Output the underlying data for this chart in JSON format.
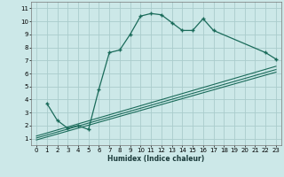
{
  "title": "",
  "xlabel": "Humidex (Indice chaleur)",
  "bg_color": "#cce8e8",
  "grid_color": "#aacccc",
  "line_color": "#1a6b5a",
  "xlim": [
    -0.5,
    23.5
  ],
  "ylim": [
    0.5,
    11.5
  ],
  "xticks": [
    0,
    1,
    2,
    3,
    4,
    5,
    6,
    7,
    8,
    9,
    10,
    11,
    12,
    13,
    14,
    15,
    16,
    17,
    18,
    19,
    20,
    21,
    22,
    23
  ],
  "yticks": [
    1,
    2,
    3,
    4,
    5,
    6,
    7,
    8,
    9,
    10,
    11
  ],
  "main_x": [
    1,
    2,
    3,
    4,
    5,
    6,
    7,
    8,
    9,
    10,
    11,
    12,
    13,
    14,
    15,
    16,
    17,
    22,
    23
  ],
  "main_y": [
    3.7,
    2.4,
    1.8,
    2.0,
    1.7,
    4.8,
    7.6,
    7.8,
    9.0,
    10.4,
    10.6,
    10.5,
    9.9,
    9.3,
    9.3,
    10.2,
    9.3,
    7.6,
    7.1
  ],
  "trend1_x": [
    0,
    23
  ],
  "trend1_y": [
    0.9,
    6.1
  ],
  "trend2_x": [
    0,
    23
  ],
  "trend2_y": [
    1.05,
    6.3
  ],
  "trend3_x": [
    0,
    23
  ],
  "trend3_y": [
    1.2,
    6.55
  ],
  "tick_fontsize": 5.0,
  "xlabel_fontsize": 5.5
}
